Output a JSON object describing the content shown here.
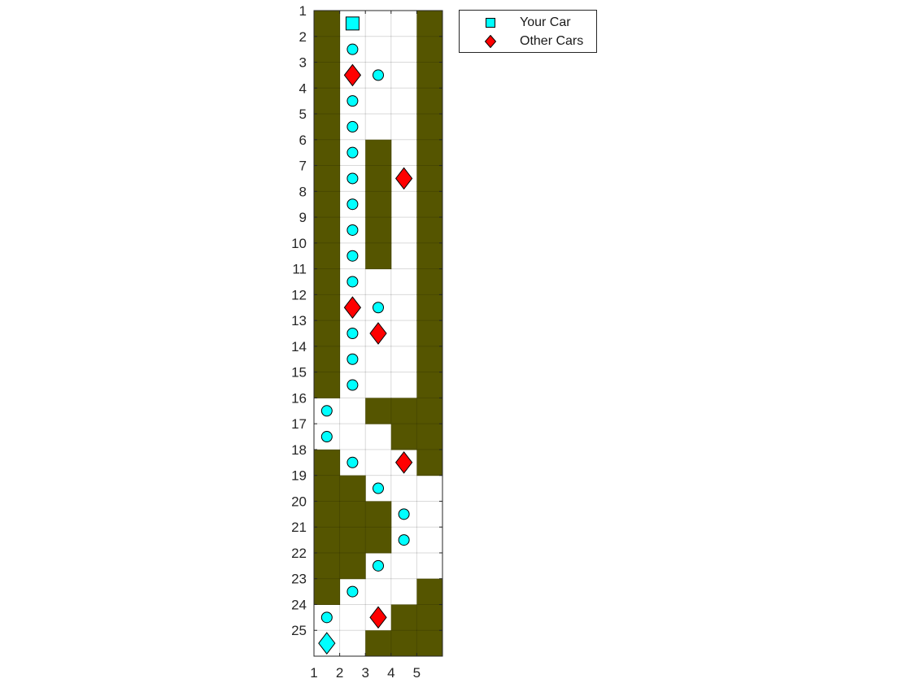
{
  "chart_data": {
    "type": "scatter",
    "title": "",
    "xlabel": "",
    "ylabel": "",
    "xlim": [
      1,
      6
    ],
    "ylim": [
      1,
      26
    ],
    "y_reversed": true,
    "grid": true,
    "x_ticks": [
      "1",
      "2",
      "3",
      "4",
      "5"
    ],
    "y_ticks": [
      "1",
      "2",
      "3",
      "4",
      "5",
      "6",
      "7",
      "8",
      "9",
      "10",
      "11",
      "12",
      "13",
      "14",
      "15",
      "16",
      "17",
      "18",
      "19",
      "20",
      "21",
      "22",
      "23",
      "24",
      "25"
    ],
    "wall_color": "#555500",
    "walls": {
      "rows": [
        [
          1,
          0,
          0,
          0,
          1
        ],
        [
          1,
          0,
          0,
          0,
          1
        ],
        [
          1,
          0,
          0,
          0,
          1
        ],
        [
          1,
          0,
          0,
          0,
          1
        ],
        [
          1,
          0,
          0,
          0,
          1
        ],
        [
          1,
          0,
          1,
          0,
          1
        ],
        [
          1,
          0,
          1,
          0,
          1
        ],
        [
          1,
          0,
          1,
          0,
          1
        ],
        [
          1,
          0,
          1,
          0,
          1
        ],
        [
          1,
          0,
          1,
          0,
          1
        ],
        [
          1,
          0,
          0,
          0,
          1
        ],
        [
          1,
          0,
          0,
          0,
          1
        ],
        [
          1,
          0,
          0,
          0,
          1
        ],
        [
          1,
          0,
          0,
          0,
          1
        ],
        [
          1,
          0,
          0,
          0,
          1
        ],
        [
          0,
          0,
          1,
          1,
          1
        ],
        [
          0,
          0,
          0,
          1,
          1
        ],
        [
          1,
          0,
          0,
          0,
          1
        ],
        [
          1,
          1,
          0,
          0,
          0
        ],
        [
          1,
          1,
          1,
          0,
          0
        ],
        [
          1,
          1,
          1,
          0,
          0
        ],
        [
          1,
          1,
          0,
          0,
          0
        ],
        [
          1,
          0,
          0,
          0,
          1
        ],
        [
          0,
          0,
          0,
          1,
          1
        ],
        [
          0,
          0,
          1,
          1,
          1
        ]
      ]
    },
    "series": [
      {
        "name": "Your Car",
        "marker": "circle",
        "color": "#00ffff",
        "points": [
          [
            2.5,
            2.5
          ],
          [
            2.5,
            4.5
          ],
          [
            2.5,
            5.5
          ],
          [
            2.5,
            6.5
          ],
          [
            2.5,
            7.5
          ],
          [
            2.5,
            8.5
          ],
          [
            2.5,
            9.5
          ],
          [
            2.5,
            10.5
          ],
          [
            2.5,
            11.5
          ],
          [
            2.5,
            13.5
          ],
          [
            2.5,
            14.5
          ],
          [
            2.5,
            15.5
          ],
          [
            3.5,
            3.5
          ],
          [
            3.5,
            12.5
          ],
          [
            1.5,
            16.5
          ],
          [
            1.5,
            17.5
          ],
          [
            2.5,
            18.5
          ],
          [
            3.5,
            19.5
          ],
          [
            4.5,
            20.5
          ],
          [
            4.5,
            21.5
          ],
          [
            3.5,
            22.5
          ],
          [
            2.5,
            23.5
          ],
          [
            1.5,
            24.5
          ]
        ]
      },
      {
        "name": "Other Cars",
        "marker": "diamond",
        "color": "#ff0000",
        "points": [
          [
            2.5,
            3.5
          ],
          [
            4.5,
            7.5
          ],
          [
            2.5,
            12.5
          ],
          [
            3.5,
            13.5
          ],
          [
            4.5,
            18.5
          ],
          [
            3.5,
            24.5
          ]
        ]
      }
    ],
    "start": {
      "marker": "square",
      "color": "#00ffff",
      "point": [
        2.5,
        1.5
      ]
    },
    "goal": {
      "marker": "diamond",
      "color": "#00ffff",
      "point": [
        1.5,
        25.5
      ]
    }
  },
  "legend": {
    "items": [
      {
        "label": "Your Car",
        "marker": "square",
        "color": "#00ffff"
      },
      {
        "label": "Other Cars",
        "marker": "diamond",
        "color": "#ff0000"
      }
    ]
  }
}
